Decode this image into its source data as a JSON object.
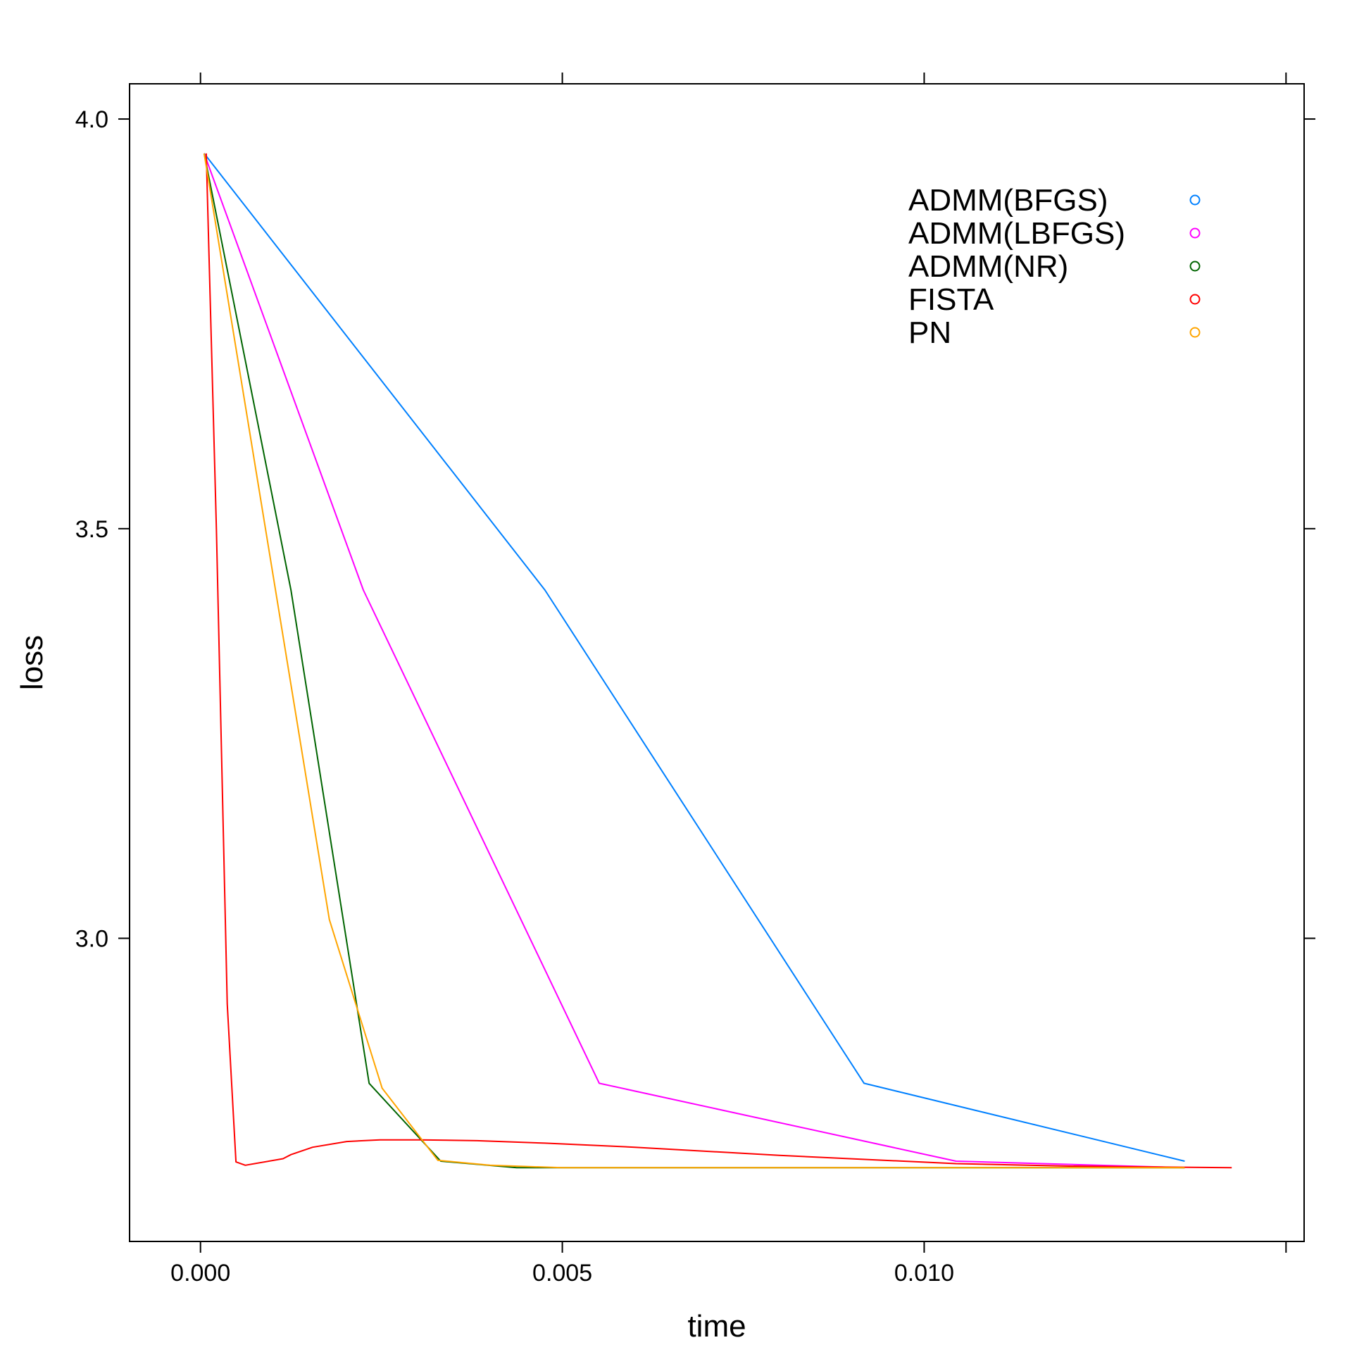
{
  "chart_data": {
    "type": "line",
    "xlabel": "time",
    "ylabel": "loss",
    "xlim": [
      -0.00098,
      0.01525
    ],
    "ylim": [
      2.63,
      4.043
    ],
    "xticks": [
      0.0,
      0.005,
      0.01,
      0.015
    ],
    "xtick_labels": [
      "0.000",
      "0.005",
      "0.010",
      ""
    ],
    "yticks": [
      3.0,
      3.5,
      4.0
    ],
    "ytick_labels": [
      "3.0",
      "3.5",
      "4.0"
    ],
    "grid": false,
    "legend_position": "top-right",
    "series": [
      {
        "name": "ADMM(BFGS)",
        "color": "#0080ff",
        "x": [
          5e-05,
          0.00476,
          0.00917,
          0.0136
        ],
        "y": [
          3.958,
          3.425,
          2.823,
          2.728
        ]
      },
      {
        "name": "ADMM(LBFGS)",
        "color": "#ff00ff",
        "x": [
          5e-05,
          0.00225,
          0.00551,
          0.01044,
          0.0136
        ],
        "y": [
          3.958,
          3.425,
          2.823,
          2.728,
          2.72
        ]
      },
      {
        "name": "ADMM(NR)",
        "color": "#006400",
        "x": [
          5e-05,
          0.00125,
          0.00233,
          0.00332,
          0.00437,
          0.0136
        ],
        "y": [
          3.958,
          3.425,
          2.823,
          2.728,
          2.72,
          2.72
        ]
      },
      {
        "name": "FISTA",
        "color": "#ff0000",
        "x": [
          8e-05,
          0.00022,
          0.00037,
          0.00049,
          0.00062,
          0.00114,
          0.00125,
          0.00155,
          0.00202,
          0.00248,
          0.00303,
          0.00382,
          0.00476,
          0.006,
          0.008,
          0.01044,
          0.012,
          0.01425
        ],
        "y": [
          3.958,
          3.5,
          2.92,
          2.727,
          2.723,
          2.731,
          2.736,
          2.745,
          2.752,
          2.754,
          2.754,
          2.753,
          2.75,
          2.745,
          2.735,
          2.725,
          2.722,
          2.72
        ]
      },
      {
        "name": "PN",
        "color": "#ffa500",
        "x": [
          5e-05,
          0.00178,
          0.00251,
          0.00328,
          0.004,
          0.005,
          0.0136
        ],
        "y": [
          3.958,
          3.023,
          2.817,
          2.729,
          2.723,
          2.72,
          2.72
        ]
      }
    ]
  }
}
